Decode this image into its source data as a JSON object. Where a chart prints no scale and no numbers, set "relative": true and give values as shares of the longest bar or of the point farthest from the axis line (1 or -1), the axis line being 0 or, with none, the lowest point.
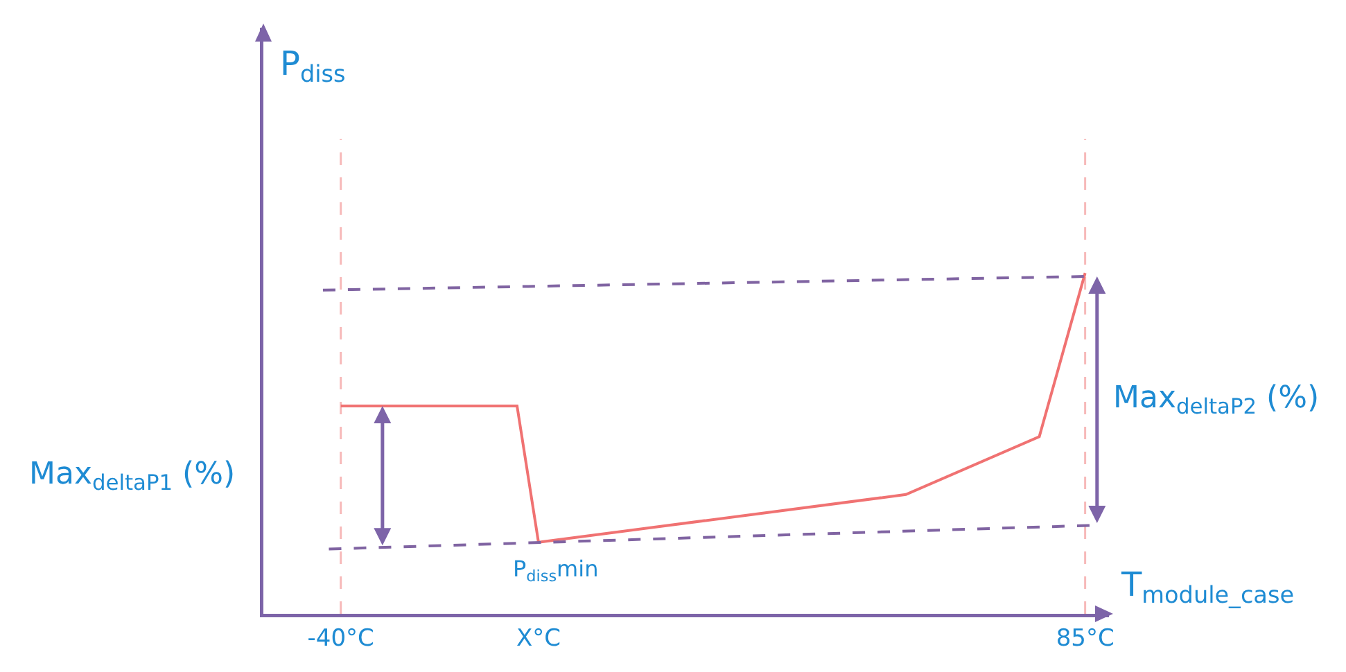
{
  "chart_data": {
    "type": "line",
    "relative": true,
    "xlabel": "T$_{module_case}$",
    "xlim": [
      -53,
      89
    ],
    "xticks": [
      {
        "value": -40,
        "label": "-40°C"
      },
      {
        "value": -6.8,
        "label": "X°C"
      },
      {
        "value": 85,
        "label": "85°C"
      }
    ],
    "tick_labels": "x",
    "grid": false,
    "marker": "none",
    "series": [
      {
        "color": "#f07272",
        "line_style": "solid",
        "x": [
          -40,
          -10.4,
          -6.8,
          54.9,
          77.3,
          85
        ],
        "values": [
          0.61,
          0.61,
          0.21,
          0.35,
          0.52,
          1
        ]
      },
      {
        "color": "#8064a2",
        "line_style": "dashed",
        "x": [
          -43,
          85
        ],
        "values": [
          0.95,
          0.99
        ]
      },
      {
        "color": "#8064a2",
        "line_style": "dashed",
        "x": [
          -42,
          87
        ],
        "values": [
          0.19,
          0.26
        ]
      }
    ],
    "ref_lines": [
      {
        "axis": "x",
        "value": -40,
        "color": "#f7b9b9",
        "line_style": "dashed"
      },
      {
        "axis": "x",
        "value": 85,
        "color": "#f7b9b9",
        "line_style": "dashed"
      }
    ],
    "annotations": [
      "Max$_{deltaP1}$ (%)",
      "Max$_{deltaP2}$ (%)",
      {
        "text": "P$_{diss}$min",
        "x": -6.8,
        "y": 0.21
      },
      "P$_{diss}$"
    ]
  }
}
